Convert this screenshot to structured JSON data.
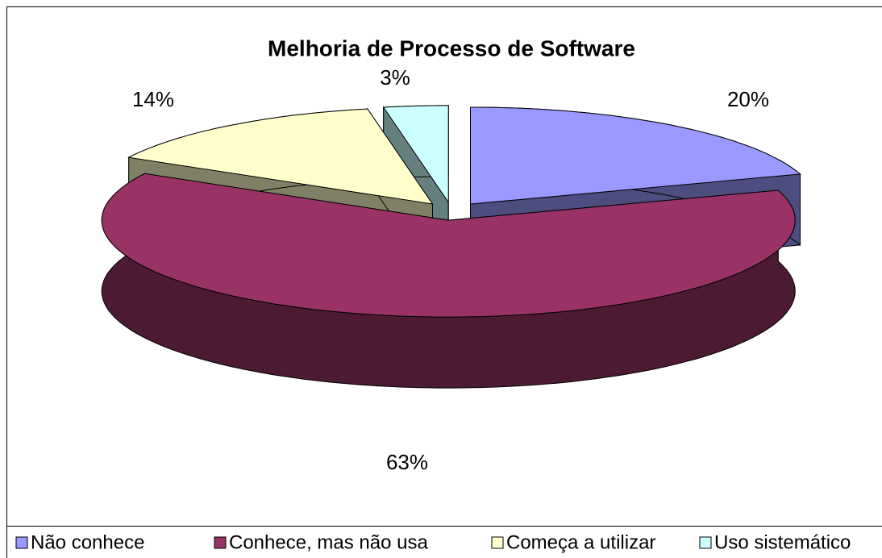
{
  "chart_data": {
    "type": "pie3d",
    "title": "Melhoria de Processo de Software",
    "categories": [
      "Não conhece",
      "Conhece, mas não usa",
      "Começa a utilizar",
      "Uso sistemático"
    ],
    "values": [
      20,
      63,
      14,
      3
    ],
    "value_labels": [
      "20%",
      "63%",
      "14%",
      "3%"
    ],
    "colors": [
      "#9999ff",
      "#993366",
      "#ffffcc",
      "#ccffff"
    ],
    "legend": "bottom"
  }
}
